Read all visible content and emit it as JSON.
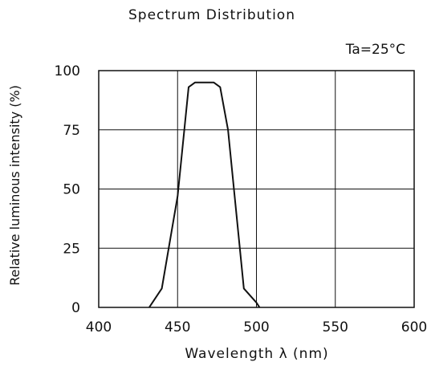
{
  "chart_data": {
    "type": "line",
    "title": "Spectrum Distribution",
    "annotation": "Ta=25°C",
    "xlabel": "Wavelength  λ (nm)",
    "ylabel": "Relative luminous intensity (%)",
    "xlim": [
      400,
      600
    ],
    "ylim": [
      0,
      100
    ],
    "xticks": [
      400,
      450,
      500,
      550,
      600
    ],
    "yticks": [
      0,
      25,
      50,
      75,
      100
    ],
    "xtick_labels": [
      "400",
      "450",
      "500",
      "550",
      "600"
    ],
    "ytick_labels": [
      "0",
      "25",
      "50",
      "75",
      "100"
    ],
    "grid": true,
    "series": [
      {
        "x": [
          432,
          440,
          450,
          457,
          461,
          467,
          473,
          477,
          482,
          492,
          500,
          502
        ],
        "y": [
          0,
          8,
          47,
          93,
          95,
          95,
          95,
          93,
          75,
          8,
          2,
          0
        ]
      }
    ]
  }
}
